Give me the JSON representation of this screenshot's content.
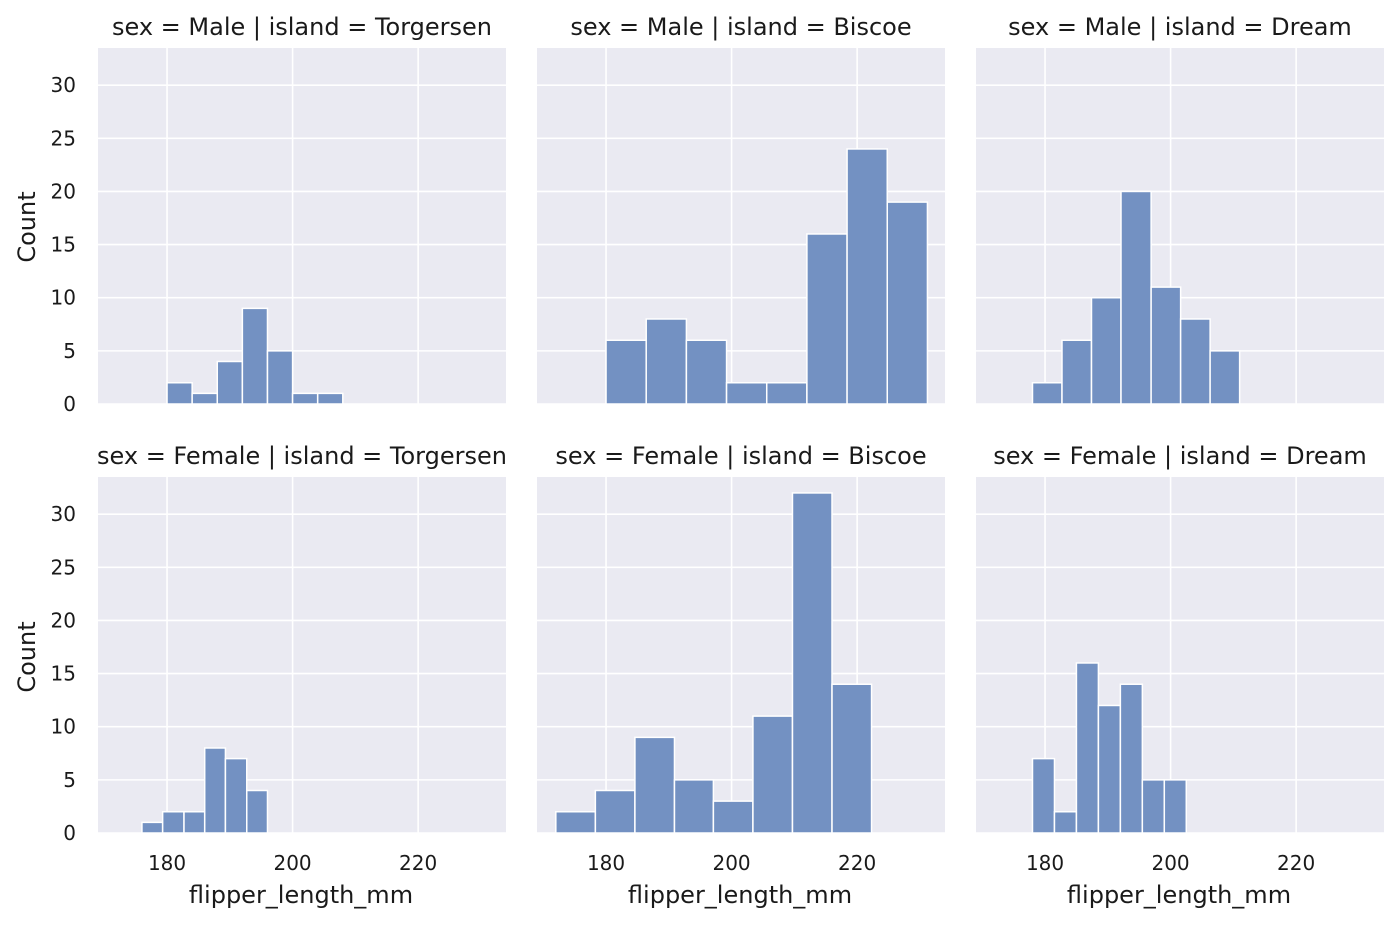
{
  "chart_data": {
    "type": "bar",
    "style": "faceted histogram grid",
    "x_label": "flipper_length_mm",
    "y_label": "Count",
    "x_ticks": [
      180,
      200,
      220
    ],
    "y_ticks": [
      0,
      5,
      10,
      15,
      20,
      25,
      30
    ],
    "xlim": [
      169,
      234
    ],
    "ylim": [
      0,
      33.5
    ],
    "bar_color": "#7391c2",
    "background": "#eaeaf2",
    "grid": true,
    "panels": [
      {
        "title": "sex = Male | island = Torgersen",
        "bins": [
          {
            "x0": 180,
            "x1": 184,
            "count": 2
          },
          {
            "x0": 184,
            "x1": 188,
            "count": 1
          },
          {
            "x0": 188,
            "x1": 192,
            "count": 4
          },
          {
            "x0": 192,
            "x1": 196,
            "count": 9
          },
          {
            "x0": 196,
            "x1": 200,
            "count": 5
          },
          {
            "x0": 200,
            "x1": 204,
            "count": 1
          },
          {
            "x0": 204,
            "x1": 208,
            "count": 1
          }
        ]
      },
      {
        "title": "sex = Male | island = Biscoe",
        "bins": [
          {
            "x0": 180,
            "x1": 186.4,
            "count": 6
          },
          {
            "x0": 186.4,
            "x1": 192.8,
            "count": 8
          },
          {
            "x0": 192.8,
            "x1": 199.2,
            "count": 6
          },
          {
            "x0": 199.2,
            "x1": 205.6,
            "count": 2
          },
          {
            "x0": 205.6,
            "x1": 212,
            "count": 2
          },
          {
            "x0": 212,
            "x1": 218.4,
            "count": 16
          },
          {
            "x0": 218.4,
            "x1": 224.8,
            "count": 24
          },
          {
            "x0": 224.8,
            "x1": 231.2,
            "count": 19
          }
        ]
      },
      {
        "title": "sex = Male | island = Dream",
        "bins": [
          {
            "x0": 178,
            "x1": 182.7,
            "count": 2
          },
          {
            "x0": 182.7,
            "x1": 187.4,
            "count": 6
          },
          {
            "x0": 187.4,
            "x1": 192.1,
            "count": 10
          },
          {
            "x0": 192.1,
            "x1": 196.9,
            "count": 20
          },
          {
            "x0": 196.9,
            "x1": 201.6,
            "count": 11
          },
          {
            "x0": 201.6,
            "x1": 206.3,
            "count": 8
          },
          {
            "x0": 206.3,
            "x1": 211,
            "count": 5
          }
        ]
      },
      {
        "title": "sex = Female | island = Torgersen",
        "bins": [
          {
            "x0": 176,
            "x1": 179.3,
            "count": 1
          },
          {
            "x0": 179.3,
            "x1": 182.7,
            "count": 2
          },
          {
            "x0": 182.7,
            "x1": 186,
            "count": 2
          },
          {
            "x0": 186,
            "x1": 189.3,
            "count": 8
          },
          {
            "x0": 189.3,
            "x1": 192.7,
            "count": 7
          },
          {
            "x0": 192.7,
            "x1": 196,
            "count": 4
          }
        ]
      },
      {
        "title": "sex = Female | island = Biscoe",
        "bins": [
          {
            "x0": 172,
            "x1": 178.3,
            "count": 2
          },
          {
            "x0": 178.3,
            "x1": 184.6,
            "count": 4
          },
          {
            "x0": 184.6,
            "x1": 190.9,
            "count": 9
          },
          {
            "x0": 190.9,
            "x1": 197.1,
            "count": 5
          },
          {
            "x0": 197.1,
            "x1": 203.4,
            "count": 3
          },
          {
            "x0": 203.4,
            "x1": 209.7,
            "count": 11
          },
          {
            "x0": 209.7,
            "x1": 216,
            "count": 32
          },
          {
            "x0": 216,
            "x1": 222.3,
            "count": 14
          }
        ]
      },
      {
        "title": "sex = Female | island = Dream",
        "bins": [
          {
            "x0": 178,
            "x1": 181.5,
            "count": 7
          },
          {
            "x0": 181.5,
            "x1": 185,
            "count": 2
          },
          {
            "x0": 185,
            "x1": 188.5,
            "count": 16
          },
          {
            "x0": 188.5,
            "x1": 192,
            "count": 12
          },
          {
            "x0": 192,
            "x1": 195.5,
            "count": 14
          },
          {
            "x0": 195.5,
            "x1": 199,
            "count": 5
          },
          {
            "x0": 199,
            "x1": 202.5,
            "count": 5
          }
        ]
      }
    ]
  }
}
